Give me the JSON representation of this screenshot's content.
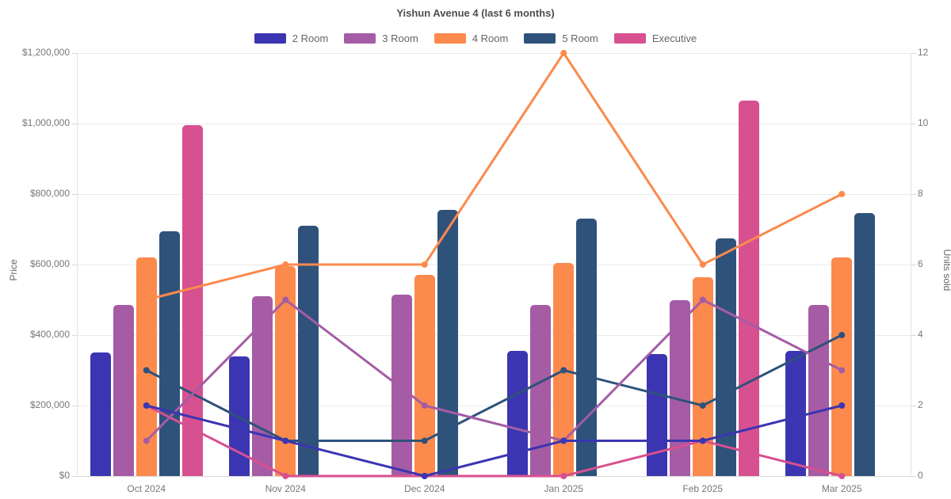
{
  "title": "Yishun Avenue 4 (last 6 months)",
  "chart_data": {
    "type": "bar+line combo",
    "categories": [
      "Oct 2024",
      "Nov 2024",
      "Dec 2024",
      "Jan 2025",
      "Feb 2025",
      "Mar 2025"
    ],
    "left_axis": {
      "title": "Price",
      "min": 0,
      "max": 1200000,
      "step": 200000,
      "format": "dollar"
    },
    "right_axis": {
      "title": "Units sold",
      "min": 0,
      "max": 12,
      "step": 2
    },
    "grid": "horizontal only",
    "legend_position": "top",
    "bar_series": [
      {
        "name": "2 Room",
        "color": "#3b35b1",
        "values": [
          350000,
          340000,
          null,
          355000,
          345000,
          355000
        ]
      },
      {
        "name": "3 Room",
        "color": "#a55ca5",
        "values": [
          485000,
          510000,
          515000,
          485000,
          500000,
          485000
        ]
      },
      {
        "name": "4 Room",
        "color": "#fc8a4c",
        "values": [
          620000,
          595000,
          570000,
          605000,
          565000,
          620000
        ]
      },
      {
        "name": "5 Room",
        "color": "#2f527b",
        "values": [
          695000,
          710000,
          755000,
          730000,
          675000,
          745000
        ]
      },
      {
        "name": "Executive",
        "color": "#d75090",
        "values": [
          995000,
          null,
          null,
          null,
          1065000,
          null
        ]
      }
    ],
    "line_series": [
      {
        "name": "2 Room",
        "color": "#3b35b1",
        "values": [
          2,
          1,
          0,
          1,
          1,
          2
        ]
      },
      {
        "name": "3 Room",
        "color": "#a55ca5",
        "values": [
          1,
          5,
          2,
          1,
          5,
          3
        ]
      },
      {
        "name": "4 Room",
        "color": "#fc8a4c",
        "values": [
          5,
          6,
          6,
          12,
          6,
          8
        ]
      },
      {
        "name": "5 Room",
        "color": "#2f527b",
        "values": [
          3,
          1,
          1,
          3,
          2,
          4
        ]
      },
      {
        "name": "Executive",
        "color": "#d75090",
        "values": [
          2,
          0,
          0,
          0,
          1,
          0
        ]
      }
    ]
  }
}
